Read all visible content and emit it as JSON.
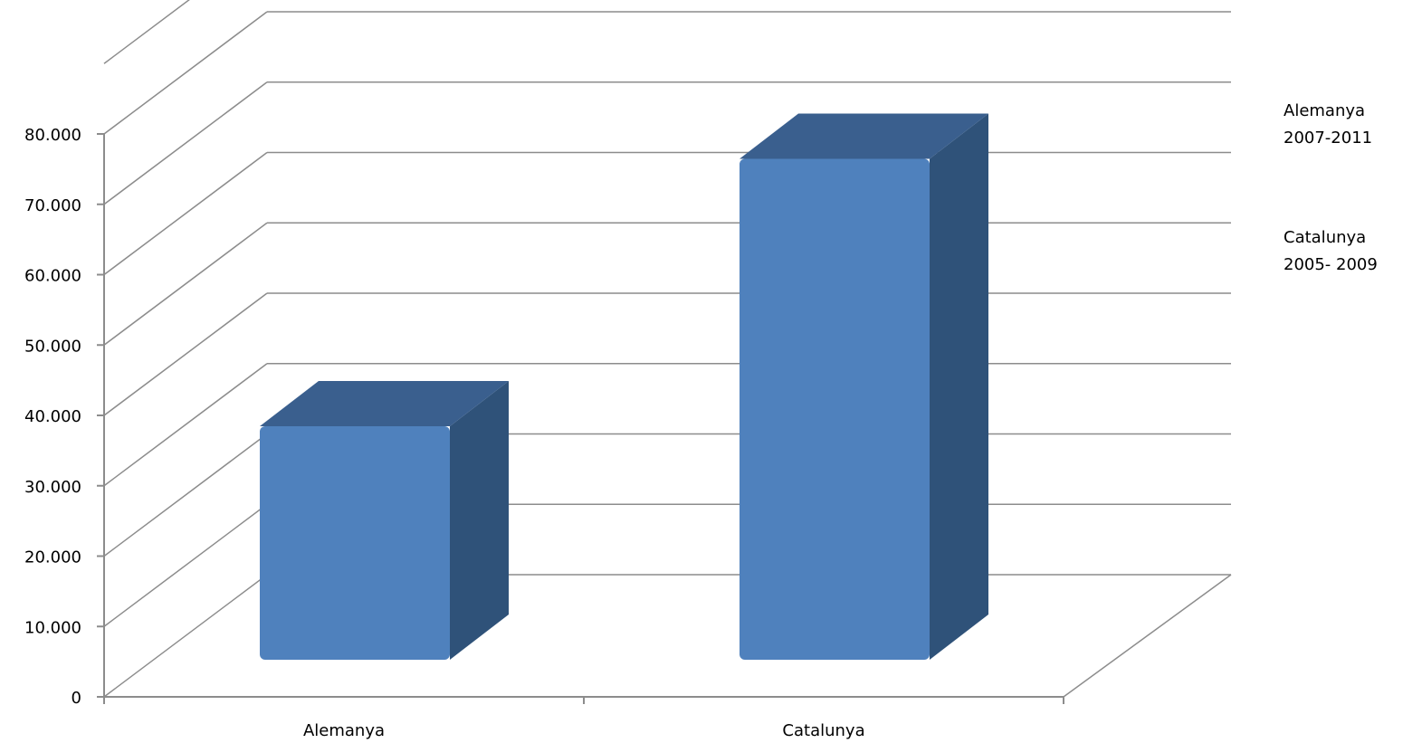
{
  "chart_data": {
    "type": "bar",
    "categories": [
      "Alemanya",
      "Catalunya"
    ],
    "values": [
      40000,
      78000
    ],
    "yticks": [
      "0",
      "10.000",
      "20.000",
      "30.000",
      "40.000",
      "50.000",
      "60.000",
      "70.000",
      "80.000"
    ],
    "ylim": [
      0,
      80000
    ],
    "legend": [
      {
        "lines": [
          "Alemanya",
          "2007-2011"
        ]
      },
      {
        "lines": [
          "Catalunya",
          "2005- 2009"
        ]
      }
    ],
    "legend_position": "right",
    "grid": true,
    "colors": {
      "bar_front": "#4F81BD",
      "bar_top": "#3A5F8E",
      "bar_side": "#2F5279",
      "grid": "#8C8C8C"
    }
  }
}
